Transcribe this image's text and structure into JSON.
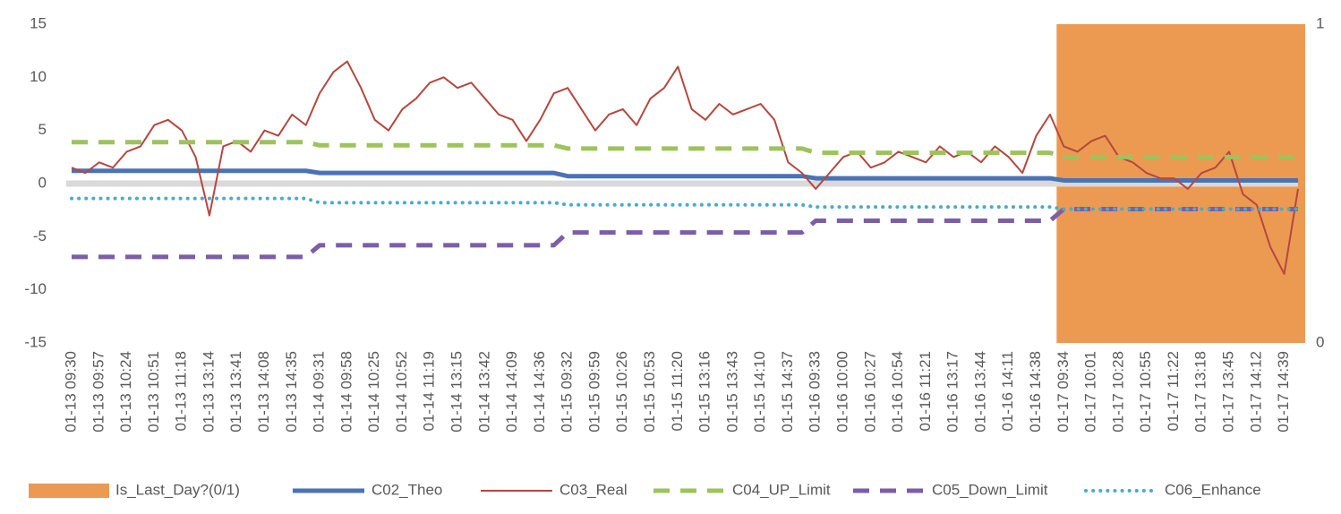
{
  "chart_data": {
    "type": "combo",
    "categories": [
      "01-13 09:30",
      null,
      "01-13 09:57",
      null,
      "01-13 10:24",
      null,
      "01-13 10:51",
      null,
      "01-13 11:18",
      null,
      "01-13 13:14",
      null,
      "01-13 13:41",
      null,
      "01-13 14:08",
      null,
      "01-13 14:35",
      null,
      "01-14 09:31",
      null,
      "01-14 09:58",
      null,
      "01-14 10:25",
      null,
      "01-14 10:52",
      null,
      "01-14 11:19",
      null,
      "01-14 13:15",
      null,
      "01-14 13:42",
      null,
      "01-14 14:09",
      null,
      "01-14 14:36",
      null,
      "01-15 09:32",
      null,
      "01-15 09:59",
      null,
      "01-15 10:26",
      null,
      "01-15 10:53",
      null,
      "01-15 11:20",
      null,
      "01-15 13:16",
      null,
      "01-15 13:43",
      null,
      "01-15 14:10",
      null,
      "01-15 14:37",
      null,
      "01-16 09:33",
      null,
      "01-16 10:00",
      null,
      "01-16 10:27",
      null,
      "01-16 10:54",
      null,
      "01-16 11:21",
      null,
      "01-16 13:17",
      null,
      "01-16 13:44",
      null,
      "01-16 14:11",
      null,
      "01-16 14:38",
      null,
      "01-17 09:34",
      null,
      "01-17 10:01",
      null,
      "01-17 10:28",
      null,
      "01-17 10:55",
      null,
      "01-17 11:22",
      null,
      "01-17 13:18",
      null,
      "01-17 13:45",
      null,
      "01-17 14:12",
      null,
      "01-17 14:39",
      null
    ],
    "series": [
      {
        "name": "Is_Last_Day?(0/1)",
        "type": "bar",
        "axis": "y2",
        "color": "#ec9a52",
        "values": [
          0,
          0,
          0,
          0,
          0,
          0,
          0,
          0,
          0,
          0,
          0,
          0,
          0,
          0,
          0,
          0,
          0,
          0,
          0,
          0,
          0,
          0,
          0,
          0,
          0,
          0,
          0,
          0,
          0,
          0,
          0,
          0,
          0,
          0,
          0,
          0,
          0,
          0,
          0,
          0,
          0,
          0,
          0,
          0,
          0,
          0,
          0,
          0,
          0,
          0,
          0,
          0,
          0,
          0,
          0,
          0,
          0,
          0,
          0,
          0,
          0,
          0,
          0,
          0,
          0,
          0,
          0,
          0,
          0,
          0,
          0,
          0,
          1,
          1,
          1,
          1,
          1,
          1,
          1,
          1,
          1,
          1,
          1,
          1,
          1,
          1,
          1,
          1,
          1,
          1
        ]
      },
      {
        "name": "C02_Theo",
        "type": "line",
        "dash": "solid",
        "width": 5,
        "color": "#4a72b8",
        "values": [
          1.2,
          1.2,
          1.2,
          1.2,
          1.2,
          1.2,
          1.2,
          1.2,
          1.2,
          1.2,
          1.2,
          1.2,
          1.2,
          1.2,
          1.2,
          1.2,
          1.2,
          1.2,
          1.0,
          1.0,
          1.0,
          1.0,
          1.0,
          1.0,
          1.0,
          1.0,
          1.0,
          1.0,
          1.0,
          1.0,
          1.0,
          1.0,
          1.0,
          1.0,
          1.0,
          1.0,
          0.7,
          0.7,
          0.7,
          0.7,
          0.7,
          0.7,
          0.7,
          0.7,
          0.7,
          0.7,
          0.7,
          0.7,
          0.7,
          0.7,
          0.7,
          0.7,
          0.7,
          0.7,
          0.5,
          0.5,
          0.5,
          0.5,
          0.5,
          0.5,
          0.5,
          0.5,
          0.5,
          0.5,
          0.5,
          0.5,
          0.5,
          0.5,
          0.5,
          0.5,
          0.5,
          0.5,
          0.3,
          0.3,
          0.3,
          0.3,
          0.3,
          0.3,
          0.3,
          0.3,
          0.3,
          0.3,
          0.3,
          0.3,
          0.3,
          0.3,
          0.3,
          0.3,
          0.3,
          0.3
        ]
      },
      {
        "name": "C03_Real",
        "type": "line",
        "dash": "solid",
        "width": 2,
        "color": "#b5473f",
        "values": [
          1.5,
          1.0,
          2.0,
          1.5,
          3.0,
          3.5,
          5.5,
          6.0,
          5.0,
          2.5,
          -3.0,
          3.5,
          4.0,
          3.0,
          5.0,
          4.5,
          6.5,
          5.5,
          8.5,
          10.5,
          11.5,
          9.0,
          6.0,
          5.0,
          7.0,
          8.0,
          9.5,
          10.0,
          9.0,
          9.5,
          8.0,
          6.5,
          6.0,
          4.0,
          6.0,
          8.5,
          9.0,
          7.0,
          5.0,
          6.5,
          7.0,
          5.5,
          8.0,
          9.0,
          11.0,
          7.0,
          6.0,
          7.5,
          6.5,
          7.0,
          7.5,
          6.0,
          2.0,
          1.0,
          -0.5,
          1.0,
          2.5,
          3.0,
          1.5,
          2.0,
          3.0,
          2.5,
          2.0,
          3.5,
          2.5,
          3.0,
          2.0,
          3.5,
          2.5,
          1.0,
          4.5,
          6.5,
          3.5,
          3.0,
          4.0,
          4.5,
          2.5,
          2.0,
          1.0,
          0.5,
          0.5,
          -0.5,
          1.0,
          1.5,
          3.0,
          -1.0,
          -2.0,
          -6.0,
          -8.5,
          -0.5
        ]
      },
      {
        "name": "C04_UP_Limit",
        "type": "line",
        "dash": "dashed",
        "width": 5,
        "color": "#9dc35a",
        "values": [
          3.9,
          3.9,
          3.9,
          3.9,
          3.9,
          3.9,
          3.9,
          3.9,
          3.9,
          3.9,
          3.9,
          3.9,
          3.9,
          3.9,
          3.9,
          3.9,
          3.9,
          3.9,
          3.6,
          3.6,
          3.6,
          3.6,
          3.6,
          3.6,
          3.6,
          3.6,
          3.6,
          3.6,
          3.6,
          3.6,
          3.6,
          3.6,
          3.6,
          3.6,
          3.6,
          3.6,
          3.3,
          3.3,
          3.3,
          3.3,
          3.3,
          3.3,
          3.3,
          3.3,
          3.3,
          3.3,
          3.3,
          3.3,
          3.3,
          3.3,
          3.3,
          3.3,
          3.3,
          3.3,
          2.9,
          2.9,
          2.9,
          2.9,
          2.9,
          2.9,
          2.9,
          2.9,
          2.9,
          2.9,
          2.9,
          2.9,
          2.9,
          2.9,
          2.9,
          2.9,
          2.9,
          2.9,
          2.5,
          2.5,
          2.5,
          2.5,
          2.5,
          2.5,
          2.5,
          2.5,
          2.5,
          2.5,
          2.5,
          2.5,
          2.5,
          2.5,
          2.5,
          2.5,
          2.5,
          2.5
        ]
      },
      {
        "name": "C05_Down_Limit",
        "type": "line",
        "dash": "dashed",
        "width": 5,
        "color": "#7b5ea7",
        "values": [
          -6.9,
          -6.9,
          -6.9,
          -6.9,
          -6.9,
          -6.9,
          -6.9,
          -6.9,
          -6.9,
          -6.9,
          -6.9,
          -6.9,
          -6.9,
          -6.9,
          -6.9,
          -6.9,
          -6.9,
          -6.9,
          -5.8,
          -5.8,
          -5.8,
          -5.8,
          -5.8,
          -5.8,
          -5.8,
          -5.8,
          -5.8,
          -5.8,
          -5.8,
          -5.8,
          -5.8,
          -5.8,
          -5.8,
          -5.8,
          -5.8,
          -5.8,
          -4.6,
          -4.6,
          -4.6,
          -4.6,
          -4.6,
          -4.6,
          -4.6,
          -4.6,
          -4.6,
          -4.6,
          -4.6,
          -4.6,
          -4.6,
          -4.6,
          -4.6,
          -4.6,
          -4.6,
          -4.6,
          -3.5,
          -3.5,
          -3.5,
          -3.5,
          -3.5,
          -3.5,
          -3.5,
          -3.5,
          -3.5,
          -3.5,
          -3.5,
          -3.5,
          -3.5,
          -3.5,
          -3.5,
          -3.5,
          -3.5,
          -3.5,
          -2.4,
          -2.4,
          -2.4,
          -2.4,
          -2.4,
          -2.4,
          -2.4,
          -2.4,
          -2.4,
          -2.4,
          -2.4,
          -2.4,
          -2.4,
          -2.4,
          -2.4,
          -2.4,
          -2.4,
          -2.4
        ]
      },
      {
        "name": "C06_Enhance",
        "type": "line",
        "dash": "dotted",
        "width": 4,
        "color": "#4aacc6",
        "values": [
          -1.4,
          -1.4,
          -1.4,
          -1.4,
          -1.4,
          -1.4,
          -1.4,
          -1.4,
          -1.4,
          -1.4,
          -1.4,
          -1.4,
          -1.4,
          -1.4,
          -1.4,
          -1.4,
          -1.4,
          -1.4,
          -1.8,
          -1.8,
          -1.8,
          -1.8,
          -1.8,
          -1.8,
          -1.8,
          -1.8,
          -1.8,
          -1.8,
          -1.8,
          -1.8,
          -1.8,
          -1.8,
          -1.8,
          -1.8,
          -1.8,
          -1.8,
          -2.0,
          -2.0,
          -2.0,
          -2.0,
          -2.0,
          -2.0,
          -2.0,
          -2.0,
          -2.0,
          -2.0,
          -2.0,
          -2.0,
          -2.0,
          -2.0,
          -2.0,
          -2.0,
          -2.0,
          -2.0,
          -2.2,
          -2.2,
          -2.2,
          -2.2,
          -2.2,
          -2.2,
          -2.2,
          -2.2,
          -2.2,
          -2.2,
          -2.2,
          -2.2,
          -2.2,
          -2.2,
          -2.2,
          -2.2,
          -2.2,
          -2.2,
          -2.4,
          -2.4,
          -2.4,
          -2.4,
          -2.4,
          -2.4,
          -2.4,
          -2.4,
          -2.4,
          -2.4,
          -2.4,
          -2.4,
          -2.4,
          -2.4,
          -2.4,
          -2.4,
          -2.4,
          -2.4
        ]
      }
    ],
    "ylim": [
      -15,
      15
    ],
    "yticks": [
      -15,
      -10,
      -5,
      0,
      5,
      10,
      15
    ],
    "y2lim": [
      0,
      1
    ],
    "y2ticks": [
      0,
      1
    ],
    "legend": "bottom"
  }
}
